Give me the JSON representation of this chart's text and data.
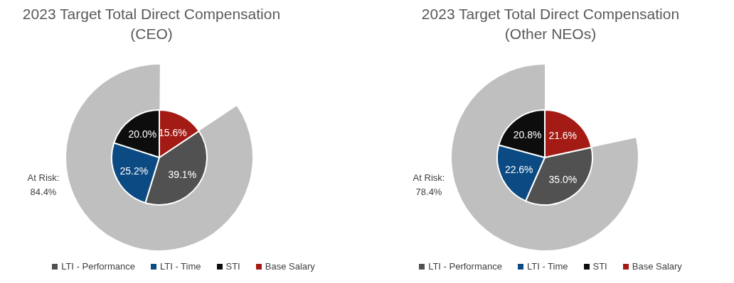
{
  "chart_data": [
    {
      "type": "pie",
      "title": "2023 Target Total Direct Compensation (CEO)",
      "categories": [
        "LTI - Performance",
        "LTI - Time",
        "STI",
        "Base Salary"
      ],
      "values": [
        39.1,
        25.2,
        20.0,
        15.6
      ],
      "colors": [
        "#515151",
        "#0b4a82",
        "#0d0d0d",
        "#a31b14"
      ],
      "value_labels": [
        "39.1%",
        "25.2%",
        "20.0%",
        "15.6%"
      ],
      "legend": "bottom",
      "series": [
        {
          "type": "donut",
          "name": "At Risk:",
          "colors": [
            "#bfbfbf",
            null,
            null,
            null
          ],
          "values": [
            84.4,
            null,
            null,
            null
          ],
          "value_labels": [
            "84.4%",
            null,
            null,
            null
          ]
        }
      ]
    },
    {
      "type": "pie",
      "title": "2023 Target Total Direct Compensation (Other NEOs)",
      "categories": [
        "LTI - Performance",
        "LTI - Time",
        "STI",
        "Base Salary"
      ],
      "values": [
        35.0,
        22.6,
        20.8,
        21.6
      ],
      "colors": [
        "#515151",
        "#0b4a82",
        "#0d0d0d",
        "#a31b14"
      ],
      "value_labels": [
        "35.0%",
        "22.6%",
        "20.8%",
        "21.6%"
      ],
      "legend": "bottom",
      "series": [
        {
          "type": "donut",
          "name": "At Risk:",
          "colors": [
            "#bfbfbf",
            null,
            null,
            null
          ],
          "values": [
            78.4,
            null,
            null,
            null
          ],
          "value_labels": [
            "78.4%",
            null,
            null,
            null
          ]
        }
      ]
    }
  ]
}
